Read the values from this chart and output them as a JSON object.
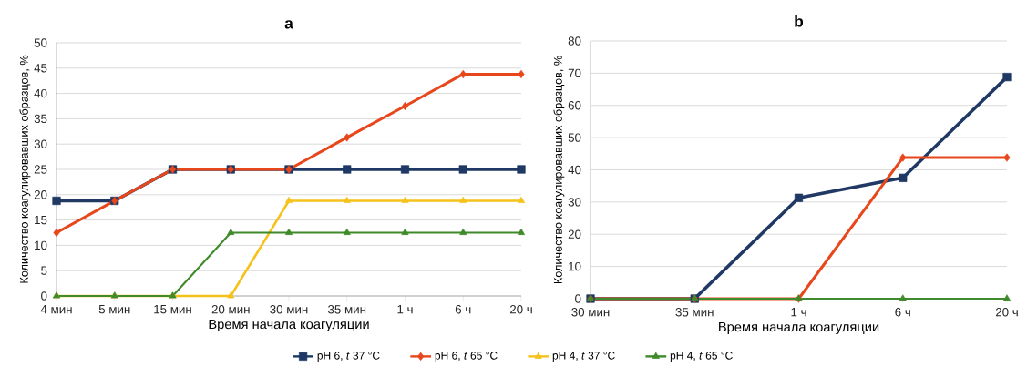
{
  "chart_data": [
    {
      "type": "line",
      "title": "a",
      "xlabel": "Время начала коагуляции",
      "ylabel": "Количество коагулировавших образцов, %",
      "categories": [
        "4 мин",
        "5 мин",
        "15 мин",
        "20 мин",
        "30 мин",
        "35 мин",
        "1 ч",
        "6 ч",
        "20 ч"
      ],
      "ylim": [
        0,
        50
      ],
      "yticks": [
        0,
        5,
        10,
        15,
        20,
        25,
        30,
        35,
        40,
        45,
        50
      ],
      "grid": "y",
      "legend": "bottom",
      "series": [
        {
          "name": "pH 6, *t* 37 °C",
          "color": "#1f3864",
          "marker": "square",
          "values": [
            18.8,
            18.8,
            25,
            25,
            25,
            25,
            25,
            25,
            25
          ]
        },
        {
          "name": "pH 6, *t* 65 °C",
          "color": "#e8471c",
          "marker": "diamond",
          "values": [
            12.5,
            18.8,
            25,
            25,
            25,
            31.3,
            37.5,
            43.8,
            43.8
          ]
        },
        {
          "name": "pH 4, *t* 37 °C",
          "color": "#f5c21b",
          "marker": "triangle",
          "values": [
            0,
            0,
            0,
            0,
            18.8,
            18.8,
            18.8,
            18.8,
            18.8
          ]
        },
        {
          "name": "pH 4, *t* 65 °C",
          "color": "#3f8a2a",
          "marker": "triangle",
          "values": [
            0,
            0,
            0,
            12.5,
            12.5,
            12.5,
            12.5,
            12.5,
            12.5
          ]
        }
      ]
    },
    {
      "type": "line",
      "title": "b",
      "xlabel": "Время начала коагуляции",
      "ylabel": "Количество коагулировавших образцов, %",
      "categories": [
        "30 мин",
        "35 мин",
        "1 ч",
        "6 ч",
        "20 ч"
      ],
      "ylim": [
        0,
        80
      ],
      "yticks": [
        0,
        10,
        20,
        30,
        40,
        50,
        60,
        70,
        80
      ],
      "grid": "y",
      "series": [
        {
          "color": "#1f3864",
          "marker": "square",
          "values": [
            0,
            0,
            31.3,
            37.5,
            68.8
          ]
        },
        {
          "color": "#e8471c",
          "marker": "diamond",
          "values": [
            0,
            0,
            0,
            43.8,
            43.8
          ]
        },
        {
          "color": "#f5c21b",
          "marker": "triangle",
          "values": [
            null,
            null,
            null,
            null,
            null
          ]
        },
        {
          "color": "#3f8a2a",
          "marker": "triangle",
          "values": [
            0,
            0,
            0,
            0,
            0
          ]
        }
      ]
    }
  ]
}
